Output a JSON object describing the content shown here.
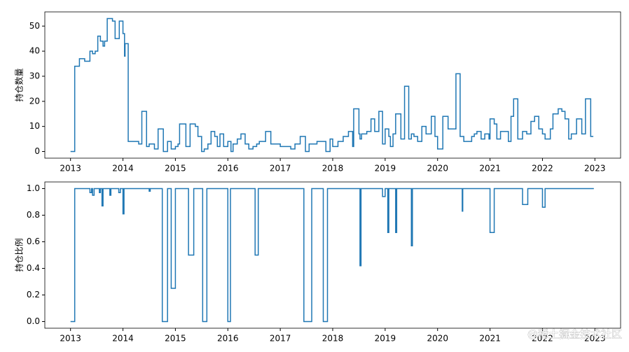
{
  "chart_data": [
    {
      "type": "line",
      "drawstyle": "steps-post",
      "ylabel": "持仓数量",
      "color": "#1f77b4",
      "x": [
        2013.0,
        2013.08,
        2013.17,
        2013.27,
        2013.37,
        2013.42,
        2013.47,
        2013.52,
        2013.57,
        2013.62,
        2013.65,
        2013.7,
        2013.8,
        2013.85,
        2013.93,
        2014.0,
        2014.03,
        2014.04,
        2014.1,
        2014.3,
        2014.36,
        2014.45,
        2014.5,
        2014.6,
        2014.67,
        2014.77,
        2014.85,
        2014.92,
        2015.0,
        2015.05,
        2015.08,
        2015.2,
        2015.28,
        2015.38,
        2015.43,
        2015.5,
        2015.55,
        2015.62,
        2015.68,
        2015.75,
        2015.8,
        2015.85,
        2015.92,
        2016.0,
        2016.06,
        2016.1,
        2016.18,
        2016.25,
        2016.33,
        2016.4,
        2016.48,
        2016.55,
        2016.6,
        2016.72,
        2016.82,
        2017.0,
        2017.2,
        2017.28,
        2017.38,
        2017.48,
        2017.55,
        2017.7,
        2017.87,
        2017.95,
        2018.0,
        2018.1,
        2018.2,
        2018.3,
        2018.38,
        2018.4,
        2018.5,
        2018.52,
        2018.55,
        2018.65,
        2018.73,
        2018.8,
        2018.88,
        2018.95,
        2019.0,
        2019.07,
        2019.1,
        2019.15,
        2019.2,
        2019.3,
        2019.37,
        2019.45,
        2019.5,
        2019.55,
        2019.62,
        2019.7,
        2019.78,
        2019.88,
        2019.95,
        2020.0,
        2020.1,
        2020.2,
        2020.35,
        2020.43,
        2020.5,
        2020.65,
        2020.7,
        2020.75,
        2020.83,
        2020.9,
        2020.98,
        2021.0,
        2021.08,
        2021.13,
        2021.2,
        2021.35,
        2021.4,
        2021.45,
        2021.53,
        2021.62,
        2021.7,
        2021.78,
        2021.85,
        2021.93,
        2022.0,
        2022.05,
        2022.15,
        2022.2,
        2022.3,
        2022.37,
        2022.43,
        2022.5,
        2022.55,
        2022.65,
        2022.75,
        2022.82,
        2022.92,
        2022.97
      ],
      "values": [
        0,
        34,
        37,
        36,
        40,
        39,
        40,
        46,
        44,
        42,
        44,
        53,
        52,
        45,
        52,
        47,
        38,
        43,
        4,
        3,
        16,
        2,
        3,
        1,
        9,
        0,
        4,
        1,
        2,
        3,
        11,
        2,
        11,
        10,
        6,
        0,
        1,
        3,
        8,
        6,
        2,
        7,
        2,
        4,
        0,
        3,
        5,
        7,
        3,
        1,
        2,
        3,
        4,
        8,
        3,
        2,
        1,
        3,
        6,
        0,
        3,
        4,
        0,
        5,
        2,
        4,
        6,
        8,
        2,
        17,
        7,
        5,
        7,
        8,
        13,
        8,
        16,
        3,
        9,
        6,
        2,
        7,
        15,
        5,
        26,
        5,
        7,
        6,
        4,
        10,
        7,
        14,
        6,
        1,
        14,
        9,
        31,
        6,
        4,
        6,
        7,
        8,
        5,
        7,
        5,
        13,
        11,
        5,
        8,
        4,
        14,
        21,
        5,
        8,
        7,
        12,
        14,
        9,
        7,
        5,
        9,
        15,
        17,
        16,
        13,
        5,
        7,
        13,
        7,
        21,
        6,
        6
      ],
      "xlim": [
        2012.51,
        2023.49
      ],
      "xticks": [
        2013,
        2014,
        2015,
        2016,
        2017,
        2018,
        2019,
        2020,
        2021,
        2022,
        2023
      ],
      "ylim": [
        -2.65,
        55.65
      ],
      "yticks": [
        0,
        10,
        20,
        30,
        40,
        50
      ]
    },
    {
      "type": "line",
      "drawstyle": "steps-post",
      "ylabel": "持仓比例",
      "color": "#1f77b4",
      "x": [
        2013.0,
        2013.08,
        2013.37,
        2013.4,
        2013.42,
        2013.45,
        2013.55,
        2013.57,
        2013.6,
        2013.62,
        2013.75,
        2013.77,
        2013.92,
        2013.95,
        2014.0,
        2014.02,
        2014.5,
        2014.52,
        2014.75,
        2014.85,
        2014.92,
        2015.0,
        2015.25,
        2015.35,
        2015.52,
        2015.6,
        2016.0,
        2016.05,
        2016.52,
        2016.58,
        2017.45,
        2017.6,
        2017.82,
        2017.9,
        2018.52,
        2018.54,
        2018.95,
        2019.0,
        2019.05,
        2019.07,
        2019.2,
        2019.22,
        2019.5,
        2019.52,
        2020.47,
        2020.48,
        2021.0,
        2021.08,
        2021.62,
        2021.72,
        2022.0,
        2022.05,
        2022.98
      ],
      "values": [
        0,
        1,
        0.97,
        1,
        0.95,
        1,
        0.97,
        1,
        0.87,
        1,
        0.95,
        1,
        0.97,
        1,
        0.81,
        1,
        0.98,
        1,
        0,
        1,
        0.25,
        1,
        0.5,
        1,
        0,
        1,
        0,
        1,
        0.5,
        1,
        0,
        1,
        0,
        1,
        0.42,
        1,
        0.94,
        1,
        0.67,
        1,
        0.67,
        1,
        0.57,
        1,
        0.83,
        1,
        0.67,
        1,
        0.88,
        1,
        0.86,
        1,
        1
      ],
      "xlim": [
        2012.51,
        2023.49
      ],
      "xticks": [
        2013,
        2014,
        2015,
        2016,
        2017,
        2018,
        2019,
        2020,
        2021,
        2022,
        2023
      ],
      "ylim": [
        -0.05,
        1.05
      ],
      "yticks": [
        {
          "value": 0,
          "label": "0.0"
        },
        {
          "value": 0.2,
          "label": "0.2"
        },
        {
          "value": 0.4,
          "label": "0.4"
        },
        {
          "value": 0.6,
          "label": "0.6"
        },
        {
          "value": 0.8,
          "label": "0.8"
        },
        {
          "value": 1,
          "label": "1.0"
        }
      ],
      "annotation": "@稀土掘金技术社区"
    }
  ]
}
